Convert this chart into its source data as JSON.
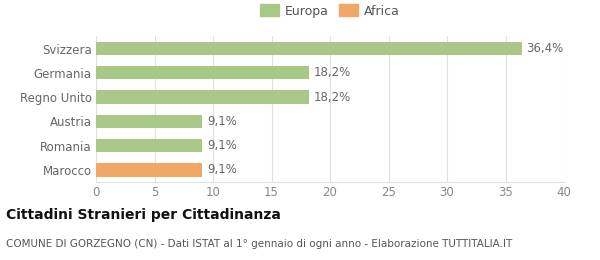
{
  "categories": [
    "Marocco",
    "Romania",
    "Austria",
    "Regno Unito",
    "Germania",
    "Svizzera"
  ],
  "values": [
    9.1,
    9.1,
    9.1,
    18.2,
    18.2,
    36.4
  ],
  "labels": [
    "9,1%",
    "9,1%",
    "9,1%",
    "18,2%",
    "18,2%",
    "36,4%"
  ],
  "bar_colors": [
    "#f0a868",
    "#a8c888",
    "#a8c888",
    "#a8c888",
    "#a8c888",
    "#a8c888"
  ],
  "legend_items": [
    {
      "label": "Europa",
      "color": "#a8c888"
    },
    {
      "label": "Africa",
      "color": "#f0a868"
    }
  ],
  "xlim": [
    0,
    40
  ],
  "xticks": [
    0,
    5,
    10,
    15,
    20,
    25,
    30,
    35,
    40
  ],
  "title": "Cittadini Stranieri per Cittadinanza",
  "subtitle": "COMUNE DI GORZEGNO (CN) - Dati ISTAT al 1° gennaio di ogni anno - Elaborazione TUTTITALIA.IT",
  "background_color": "#ffffff",
  "grid_color": "#e0e0e0",
  "bar_height": 0.55,
  "title_fontsize": 10,
  "subtitle_fontsize": 7.5,
  "tick_fontsize": 8.5,
  "label_fontsize": 8.5
}
